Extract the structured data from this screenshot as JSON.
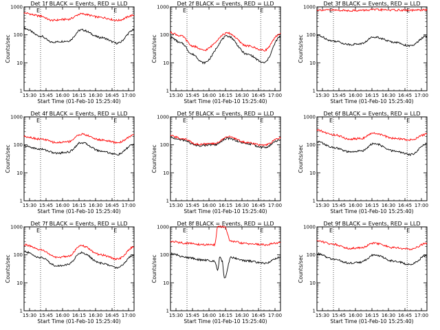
{
  "chart_data": [
    {
      "type": "line",
      "title": "Det 1f BLACK = Events, RED = LLD",
      "xlabel": "Start Time (01-Feb-10 15:25:40)",
      "ylabel": "Counts/sec",
      "yscale": "log",
      "ylim": [
        1,
        1000
      ],
      "x_ticks": [
        "15:30",
        "15:45",
        "16:00",
        "16:15",
        "16:30",
        "16:45",
        "17:00"
      ],
      "y_ticks": [
        "1",
        "10",
        "100",
        "1000"
      ],
      "markers": [
        "E",
        "E"
      ],
      "vlines": [
        "15:40",
        "16:47"
      ],
      "series": [
        {
          "name": "Events",
          "color": "#000000",
          "x": [
            "15:25",
            "15:40",
            "15:50",
            "16:05",
            "16:17",
            "16:35",
            "16:50",
            "17:05"
          ],
          "values": [
            170,
            90,
            55,
            60,
            150,
            80,
            50,
            150
          ]
        },
        {
          "name": "LLD",
          "color": "#ff0000",
          "x": [
            "15:25",
            "15:40",
            "15:50",
            "16:05",
            "16:17",
            "16:35",
            "16:50",
            "17:05"
          ],
          "values": [
            600,
            470,
            330,
            360,
            560,
            420,
            330,
            500
          ]
        }
      ]
    },
    {
      "type": "line",
      "title": "Det 2f BLACK = Events, RED = LLD",
      "xlabel": "Start Time (01-Feb-10 15:25:40)",
      "ylabel": "Counts/sec",
      "yscale": "log",
      "ylim": [
        1,
        1000
      ],
      "x_ticks": [
        "15:30",
        "15:45",
        "16:00",
        "16:15",
        "16:30",
        "16:45",
        "17:00"
      ],
      "y_ticks": [
        "1",
        "10",
        "100",
        "1000"
      ],
      "markers": [
        "E",
        "E"
      ],
      "vlines": [
        "15:40",
        "16:47"
      ],
      "series": [
        {
          "name": "Events",
          "color": "#000000",
          "x": [
            "15:25",
            "15:35",
            "15:45",
            "15:55",
            "16:17",
            "16:35",
            "16:50",
            "17:05"
          ],
          "values": [
            80,
            50,
            20,
            10,
            90,
            20,
            10,
            85
          ]
        },
        {
          "name": "LLD",
          "color": "#ff0000",
          "x": [
            "15:25",
            "15:35",
            "15:45",
            "15:55",
            "16:17",
            "16:35",
            "16:50",
            "17:05"
          ],
          "values": [
            120,
            90,
            40,
            28,
            115,
            40,
            28,
            110
          ]
        }
      ]
    },
    {
      "type": "line",
      "title": "Det 3f BLACK = Events, RED = LLD",
      "xlabel": "Start Time (01-Feb-10 15:25:40)",
      "ylabel": "Counts/sec",
      "yscale": "log",
      "ylim": [
        1,
        1000
      ],
      "x_ticks": [
        "15:30",
        "15:45",
        "16:00",
        "16:15",
        "16:30",
        "16:45",
        "17:00"
      ],
      "y_ticks": [
        "1",
        "10",
        "100",
        "1000"
      ],
      "markers": [
        "E",
        "E"
      ],
      "vlines": [
        "15:40",
        "16:47"
      ],
      "series": [
        {
          "name": "Events",
          "color": "#000000",
          "x": [
            "15:25",
            "15:40",
            "15:55",
            "16:05",
            "16:17",
            "16:35",
            "16:50",
            "17:05"
          ],
          "values": [
            95,
            60,
            45,
            48,
            85,
            55,
            40,
            90
          ]
        },
        {
          "name": "LLD",
          "color": "#ff0000",
          "x": [
            "15:25",
            "15:40",
            "15:55",
            "16:05",
            "16:17",
            "16:35",
            "16:50",
            "17:05"
          ],
          "values": [
            780,
            760,
            740,
            750,
            790,
            770,
            750,
            780
          ]
        }
      ]
    },
    {
      "type": "line",
      "title": "Det 4f BLACK = Events, RED = LLD",
      "xlabel": "Start Time (01-Feb-10 15:25:40)",
      "ylabel": "Counts/sec",
      "yscale": "log",
      "ylim": [
        1,
        1000
      ],
      "x_ticks": [
        "15:30",
        "15:45",
        "16:00",
        "16:15",
        "16:30",
        "16:45",
        "17:00"
      ],
      "y_ticks": [
        "1",
        "10",
        "100",
        "1000"
      ],
      "markers": [
        "E",
        "E"
      ],
      "vlines": [
        "15:40",
        "16:47"
      ],
      "series": [
        {
          "name": "Events",
          "color": "#000000",
          "x": [
            "15:25",
            "15:40",
            "15:55",
            "16:05",
            "16:17",
            "16:35",
            "16:50",
            "17:05"
          ],
          "values": [
            90,
            70,
            50,
            55,
            120,
            60,
            45,
            105
          ]
        },
        {
          "name": "LLD",
          "color": "#ff0000",
          "x": [
            "15:25",
            "15:40",
            "15:55",
            "16:05",
            "16:17",
            "16:35",
            "16:50",
            "17:05"
          ],
          "values": [
            200,
            160,
            120,
            130,
            240,
            150,
            120,
            220
          ]
        }
      ]
    },
    {
      "type": "line",
      "title": "Det 5f BLACK = Events, RED = LLD",
      "xlabel": "Start Time (01-Feb-10 15:25:40)",
      "ylabel": "Counts/sec",
      "yscale": "log",
      "ylim": [
        1,
        1000
      ],
      "x_ticks": [
        "15:30",
        "15:45",
        "16:00",
        "16:15",
        "16:30",
        "16:45",
        "17:00"
      ],
      "y_ticks": [
        "1",
        "10",
        "100",
        "1000"
      ],
      "markers": [
        "E",
        "E"
      ],
      "vlines": [
        "15:40",
        "16:47"
      ],
      "series": [
        {
          "name": "Events",
          "color": "#000000",
          "x": [
            "15:25",
            "15:35",
            "15:50",
            "16:05",
            "16:17",
            "16:35",
            "16:50",
            "17:05"
          ],
          "values": [
            180,
            150,
            95,
            100,
            170,
            110,
            80,
            150
          ]
        },
        {
          "name": "LLD",
          "color": "#ff0000",
          "x": [
            "15:25",
            "15:35",
            "15:50",
            "16:05",
            "16:17",
            "16:35",
            "16:50",
            "17:05"
          ],
          "values": [
            210,
            170,
            105,
            110,
            195,
            120,
            95,
            175
          ]
        }
      ]
    },
    {
      "type": "line",
      "title": "Det 6f BLACK = Events, RED = LLD",
      "xlabel": "Start Time (01-Feb-10 15:25:40)",
      "ylabel": "Counts/sec",
      "yscale": "log",
      "ylim": [
        1,
        1000
      ],
      "x_ticks": [
        "15:30",
        "15:45",
        "16:00",
        "16:15",
        "16:30",
        "16:45",
        "17:00"
      ],
      "y_ticks": [
        "1",
        "10",
        "100",
        "1000"
      ],
      "markers": [
        "E",
        "E"
      ],
      "vlines": [
        "15:40",
        "16:47"
      ],
      "series": [
        {
          "name": "Events",
          "color": "#000000",
          "x": [
            "15:25",
            "15:40",
            "15:55",
            "16:05",
            "16:17",
            "16:35",
            "16:50",
            "17:05"
          ],
          "values": [
            130,
            80,
            55,
            60,
            110,
            60,
            45,
            110
          ]
        },
        {
          "name": "LLD",
          "color": "#ff0000",
          "x": [
            "15:25",
            "15:40",
            "15:55",
            "16:05",
            "16:17",
            "16:35",
            "16:50",
            "17:05"
          ],
          "values": [
            330,
            230,
            160,
            170,
            260,
            170,
            150,
            240
          ]
        }
      ]
    },
    {
      "type": "line",
      "title": "Det 7f BLACK = Events, RED = LLD",
      "xlabel": "Start Time (01-Feb-10 15:25:40)",
      "ylabel": "Counts/sec",
      "yscale": "log",
      "ylim": [
        1,
        1000
      ],
      "x_ticks": [
        "15:30",
        "15:45",
        "16:00",
        "16:15",
        "16:30",
        "16:45",
        "17:00"
      ],
      "y_ticks": [
        "1",
        "10",
        "100",
        "1000"
      ],
      "markers": [
        "E",
        "E"
      ],
      "vlines": [
        "15:40",
        "16:47"
      ],
      "series": [
        {
          "name": "Events",
          "color": "#000000",
          "x": [
            "15:25",
            "15:40",
            "15:55",
            "16:05",
            "16:17",
            "16:35",
            "16:50",
            "17:05"
          ],
          "values": [
            130,
            80,
            40,
            45,
            120,
            50,
            35,
            100
          ]
        },
        {
          "name": "LLD",
          "color": "#ff0000",
          "x": [
            "15:25",
            "15:40",
            "15:55",
            "16:05",
            "16:17",
            "16:35",
            "16:50",
            "17:05"
          ],
          "values": [
            230,
            150,
            80,
            90,
            210,
            100,
            70,
            190
          ]
        }
      ]
    },
    {
      "type": "line",
      "title": "Det 8f BLACK = Events, RED = LLD",
      "xlabel": "Start Time (01-Feb-10 15:25:40)",
      "ylabel": "Counts/sec",
      "yscale": "log",
      "ylim": [
        1,
        1000
      ],
      "x_ticks": [
        "15:30",
        "15:45",
        "16:00",
        "16:15",
        "16:30",
        "16:45",
        "17:00"
      ],
      "y_ticks": [
        "1",
        "10",
        "100",
        "1000"
      ],
      "markers": [
        "E",
        "E"
      ],
      "vlines": [
        "15:40",
        "16:47"
      ],
      "series": [
        {
          "name": "Events",
          "color": "#000000",
          "x": [
            "15:25",
            "15:40",
            "15:55",
            "16:05",
            "16:08",
            "16:10",
            "16:12",
            "16:14",
            "16:20",
            "16:35",
            "16:50",
            "17:05"
          ],
          "values": [
            110,
            80,
            65,
            60,
            30,
            90,
            60,
            15,
            80,
            60,
            50,
            80
          ]
        },
        {
          "name": "LLD",
          "color": "#ff0000",
          "x": [
            "15:25",
            "15:40",
            "15:55",
            "16:05",
            "16:08",
            "16:10",
            "16:12",
            "16:14",
            "16:20",
            "16:35",
            "16:50",
            "17:05"
          ],
          "values": [
            300,
            260,
            230,
            230,
            1000,
            1000,
            1000,
            1000,
            300,
            250,
            230,
            270
          ]
        }
      ]
    },
    {
      "type": "line",
      "title": "Det 9f BLACK = Events, RED = LLD",
      "xlabel": "Start Time (01-Feb-10 15:25:40)",
      "ylabel": "Counts/sec",
      "yscale": "log",
      "ylim": [
        1,
        1000
      ],
      "x_ticks": [
        "15:30",
        "15:45",
        "16:00",
        "16:15",
        "16:30",
        "16:45",
        "17:00"
      ],
      "y_ticks": [
        "1",
        "10",
        "100",
        "1000"
      ],
      "markers": [
        "E",
        "E"
      ],
      "vlines": [
        "15:40",
        "16:47"
      ],
      "series": [
        {
          "name": "Events",
          "color": "#000000",
          "x": [
            "15:25",
            "15:40",
            "15:55",
            "16:05",
            "16:17",
            "16:35",
            "16:50",
            "17:05"
          ],
          "values": [
            110,
            70,
            50,
            55,
            100,
            60,
            45,
            95
          ]
        },
        {
          "name": "LLD",
          "color": "#ff0000",
          "x": [
            "15:25",
            "15:40",
            "15:55",
            "16:05",
            "16:17",
            "16:35",
            "16:50",
            "17:05"
          ],
          "values": [
            320,
            240,
            170,
            180,
            260,
            180,
            160,
            260
          ]
        }
      ]
    }
  ]
}
